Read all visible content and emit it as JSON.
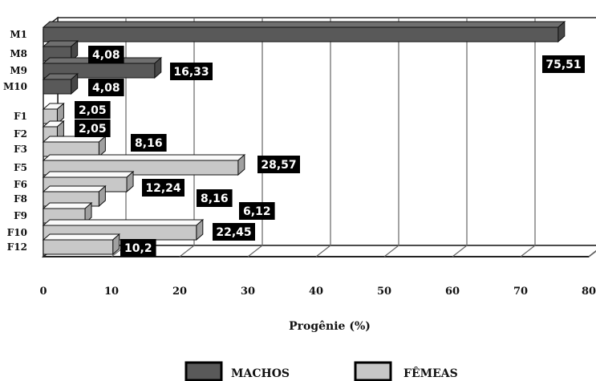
{
  "chart_data": {
    "type": "bar",
    "orientation": "horizontal",
    "categories": [
      "M1",
      "M8",
      "M9",
      "M10",
      "F1",
      "F2",
      "F3",
      "F5",
      "F6",
      "F8",
      "F9",
      "F10",
      "F12"
    ],
    "series": [
      {
        "name": "MACHOS",
        "color": "#595959",
        "values": [
          75.51,
          4.08,
          16.33,
          4.08,
          null,
          null,
          null,
          null,
          null,
          null,
          null,
          null,
          null
        ]
      },
      {
        "name": "FÊMEAS",
        "color": "#c8c8c8",
        "values": [
          null,
          null,
          null,
          null,
          2.05,
          2.05,
          8.16,
          28.57,
          12.24,
          8.16,
          6.12,
          22.45,
          10.2
        ]
      }
    ],
    "data_labels": [
      "75,51",
      "4,08",
      "16,33",
      "4,08",
      "2,05",
      "2,05",
      "8,16",
      "28,57",
      "12,24",
      "8,16",
      "6,12",
      "22,45",
      "10,2"
    ],
    "xlabel": "Progênie (%)",
    "ylabel": "",
    "xlim": [
      0,
      80
    ],
    "xticks": [
      "0",
      "10",
      "20",
      "30",
      "40",
      "50",
      "60",
      "70",
      "80"
    ],
    "grid": "vertical",
    "legend_position": "bottom-center",
    "style": "3d"
  }
}
